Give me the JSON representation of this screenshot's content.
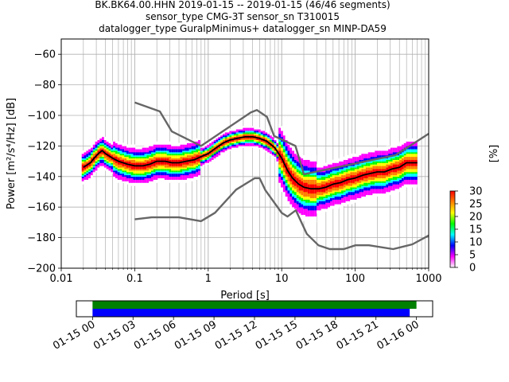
{
  "title_lines": [
    "BK.BK64.00.HHN   2019-01-15 -- 2019-01-15  (46/46 segments)",
    "sensor_type CMG-3T sensor_sn T310015",
    "datalogger_type GuralpMinimus+ datalogger_sn MINP-DA59"
  ],
  "chart_data": {
    "type": "heatmap",
    "xlabel": "Period [s]",
    "ylabel": "Power [m²/s⁴/Hz] [dB]",
    "xscale": "log",
    "xlim": [
      0.01,
      1000
    ],
    "ylim": [
      -200,
      -50
    ],
    "x_tick_values": [
      0.01,
      0.1,
      1,
      10,
      100,
      1000
    ],
    "x_tick_labels": [
      "0.01",
      "0.1",
      "1",
      "10",
      "100",
      "1000"
    ],
    "y_tick_values": [
      -60,
      -80,
      -100,
      -120,
      -140,
      -160,
      -180,
      -200
    ],
    "y_tick_labels": [
      "−60",
      "−80",
      "−100",
      "−120",
      "−140",
      "−160",
      "−180",
      "−200"
    ],
    "grid": true,
    "series": [
      {
        "name": "NHNM",
        "color": "#666666",
        "x": [
          0.1,
          0.22,
          0.32,
          0.8,
          3.8,
          4.6,
          6.3,
          7.9,
          15.4,
          20,
          354.8,
          1000
        ],
        "y": [
          -91.5,
          -97.4,
          -110.5,
          -120,
          -98,
          -96.5,
          -101,
          -113.5,
          -120,
          -138.5,
          -126,
          -112
        ]
      },
      {
        "name": "NLNM",
        "color": "#666666",
        "x": [
          0.1,
          0.17,
          0.4,
          0.8,
          1.24,
          2.4,
          4.3,
          5,
          6,
          10,
          12,
          15.6,
          21.9,
          31.6,
          45,
          70,
          101,
          154,
          328,
          600,
          1000
        ],
        "y": [
          -168,
          -166.7,
          -166.7,
          -169.2,
          -163.7,
          -148.6,
          -141.1,
          -141.1,
          -149,
          -163.8,
          -166.2,
          -162.1,
          -177.5,
          -185,
          -187.5,
          -187.5,
          -185,
          -185,
          -187.5,
          -184.4,
          -178.6
        ]
      },
      {
        "name": "mode",
        "color": "#000000",
        "x": [
          0.02,
          0.025,
          0.028,
          0.032,
          0.036,
          0.04,
          0.05,
          0.06,
          0.08,
          0.1,
          0.13,
          0.16,
          0.2,
          0.26,
          0.32,
          0.4,
          0.5,
          0.65,
          0.8,
          1,
          1.3,
          1.6,
          2,
          2.5,
          3.2,
          4,
          5,
          6.3,
          8,
          10,
          12,
          14,
          17,
          20,
          25,
          32,
          40,
          50,
          63,
          80,
          100,
          130,
          160,
          200,
          250,
          320,
          400,
          500,
          700
        ],
        "y": [
          -134,
          -131,
          -128,
          -125,
          -123,
          -125,
          -128,
          -130,
          -132,
          -133,
          -133,
          -132,
          -130,
          -130,
          -131,
          -131,
          -130,
          -129,
          -127,
          -125,
          -121,
          -118,
          -116,
          -115,
          -114,
          -114,
          -115,
          -117,
          -121,
          -128,
          -136,
          -141,
          -145,
          -147,
          -148,
          -148,
          -147,
          -145,
          -144,
          -142,
          -141,
          -139,
          -138,
          -137,
          -137,
          -135,
          -134,
          -131,
          -131
        ]
      }
    ],
    "colorbar": {
      "label": "[%]",
      "min": 0,
      "max": 30,
      "ticks": [
        0,
        5,
        10,
        15,
        20,
        25,
        30
      ],
      "tick_labels": [
        "0",
        "5",
        "10",
        "15",
        "20",
        "25",
        "30"
      ],
      "colors": [
        "#ffffff",
        "#ff00ff",
        "#0000ff",
        "#00ffff",
        "#00ff00",
        "#ffff00",
        "#ff8000",
        "#ff0000"
      ]
    },
    "coverage": {
      "x_tick_labels": [
        "01-15 00",
        "01-15 03",
        "01-15 06",
        "01-15 09",
        "01-15 12",
        "01-15 15",
        "01-15 18",
        "01-15 21",
        "01-16 00"
      ],
      "x_tick_hours": [
        0,
        3,
        6,
        9,
        12,
        15,
        18,
        21,
        24
      ],
      "xlim_hours": [
        -1.2,
        25.2
      ],
      "bars": [
        {
          "name": "data",
          "color": "#008000",
          "start_h": 0,
          "end_h": 24
        },
        {
          "name": "used",
          "color": "#0000ff",
          "start_h": 0,
          "end_h": 23.5
        }
      ]
    }
  }
}
